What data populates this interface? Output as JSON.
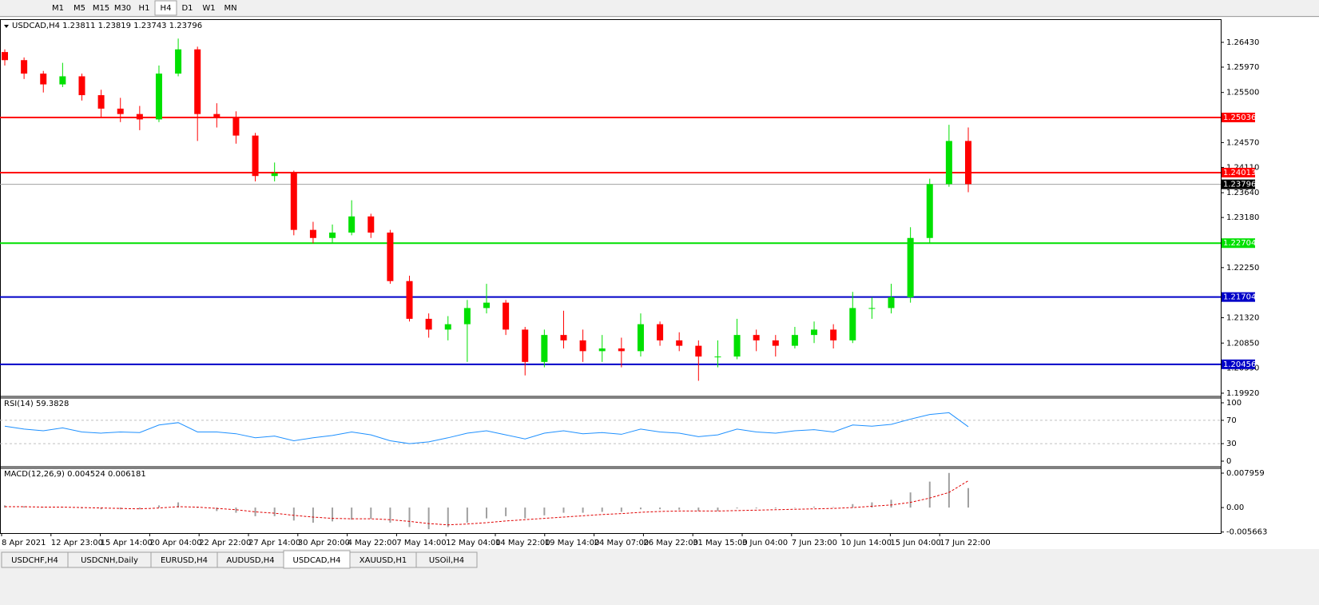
{
  "toolbar": {
    "timeframes": [
      "M1",
      "M5",
      "M15",
      "M30",
      "H1",
      "H4",
      "D1",
      "W1",
      "MN"
    ],
    "active": 5
  },
  "chart": {
    "header": "USDCAD,H4  1.23811 1.23819 1.23743 1.23796",
    "ylim": [
      1.19875,
      1.26845
    ],
    "yticks": [
      {
        "value": 1.2643,
        "label": "1.26430"
      },
      {
        "value": 1.2597,
        "label": "1.25970"
      },
      {
        "value": 1.255,
        "label": "1.25500"
      },
      {
        "value": 1.2457,
        "label": "1.24570"
      },
      {
        "value": 1.2411,
        "label": "1.24110"
      },
      {
        "value": 1.2364,
        "label": "1.23640"
      },
      {
        "value": 1.2318,
        "label": "1.23180"
      },
      {
        "value": 1.2225,
        "label": "1.22250"
      },
      {
        "value": 1.2132,
        "label": "1.21320"
      },
      {
        "value": 1.2085,
        "label": "1.20850"
      },
      {
        "value": 1.2039,
        "label": "1.20390"
      },
      {
        "value": 1.1992,
        "label": "1.19920"
      }
    ],
    "levels": [
      {
        "value": 1.25036,
        "color": "#ff0000"
      },
      {
        "value": 1.24013,
        "color": "#ff0000"
      },
      {
        "value": 1.22704,
        "color": "#00e000"
      },
      {
        "value": 1.21704,
        "color": "#0000c8"
      },
      {
        "value": 1.20456,
        "color": "#0000c8"
      }
    ],
    "current": 1.23796,
    "up_color": "#00e000",
    "down_color": "#ff0000",
    "candles": [
      [
        1.2625,
        1.263,
        1.26,
        1.261
      ],
      [
        1.261,
        1.2615,
        1.2575,
        1.2585
      ],
      [
        1.2585,
        1.259,
        1.255,
        1.2565
      ],
      [
        1.2565,
        1.2605,
        1.256,
        1.258
      ],
      [
        1.258,
        1.2585,
        1.2535,
        1.2545
      ],
      [
        1.2545,
        1.2555,
        1.2505,
        1.252
      ],
      [
        1.252,
        1.254,
        1.2495,
        1.251
      ],
      [
        1.251,
        1.2525,
        1.248,
        1.25
      ],
      [
        1.25,
        1.26,
        1.2495,
        1.2585
      ],
      [
        1.2585,
        1.265,
        1.258,
        1.263
      ],
      [
        1.263,
        1.2635,
        1.246,
        1.251
      ],
      [
        1.251,
        1.253,
        1.2485,
        1.2505
      ],
      [
        1.2505,
        1.2515,
        1.2455,
        1.247
      ],
      [
        1.247,
        1.2475,
        1.2385,
        1.2395
      ],
      [
        1.2395,
        1.242,
        1.2385,
        1.24
      ],
      [
        1.24,
        1.2405,
        1.2285,
        1.2295
      ],
      [
        1.2295,
        1.231,
        1.227,
        1.228
      ],
      [
        1.228,
        1.2305,
        1.227,
        1.229
      ],
      [
        1.229,
        1.235,
        1.2285,
        1.232
      ],
      [
        1.232,
        1.2325,
        1.228,
        1.229
      ],
      [
        1.229,
        1.2295,
        1.2195,
        1.22
      ],
      [
        1.22,
        1.221,
        1.2125,
        1.213
      ],
      [
        1.213,
        1.214,
        1.2095,
        1.211
      ],
      [
        1.211,
        1.2135,
        1.209,
        1.212
      ],
      [
        1.212,
        1.2165,
        1.205,
        1.215
      ],
      [
        1.215,
        1.2195,
        1.214,
        1.216
      ],
      [
        1.216,
        1.2165,
        1.21,
        1.211
      ],
      [
        1.211,
        1.2115,
        1.2025,
        1.205
      ],
      [
        1.205,
        1.211,
        1.204,
        1.21
      ],
      [
        1.21,
        1.2145,
        1.2075,
        1.209
      ],
      [
        1.209,
        1.211,
        1.205,
        1.207
      ],
      [
        1.207,
        1.21,
        1.205,
        1.2075
      ],
      [
        1.2075,
        1.2095,
        1.204,
        1.207
      ],
      [
        1.207,
        1.214,
        1.206,
        1.212
      ],
      [
        1.212,
        1.2125,
        1.208,
        1.209
      ],
      [
        1.209,
        1.2105,
        1.207,
        1.208
      ],
      [
        1.208,
        1.209,
        1.2015,
        1.206
      ],
      [
        1.206,
        1.209,
        1.204,
        1.206
      ],
      [
        1.206,
        1.213,
        1.2055,
        1.21
      ],
      [
        1.21,
        1.211,
        1.207,
        1.209
      ],
      [
        1.209,
        1.21,
        1.206,
        1.208
      ],
      [
        1.208,
        1.2115,
        1.2075,
        1.21
      ],
      [
        1.21,
        1.2125,
        1.2085,
        1.211
      ],
      [
        1.211,
        1.212,
        1.2075,
        1.209
      ],
      [
        1.209,
        1.218,
        1.2085,
        1.215
      ],
      [
        1.215,
        1.217,
        1.213,
        1.215
      ],
      [
        1.215,
        1.2195,
        1.214,
        1.217
      ],
      [
        1.217,
        1.23,
        1.216,
        1.228
      ],
      [
        1.228,
        1.239,
        1.227,
        1.238
      ],
      [
        1.238,
        1.249,
        1.2375,
        1.246
      ],
      [
        1.246,
        1.2485,
        1.2365,
        1.238
      ]
    ],
    "dates": [
      "8 Apr 2021",
      "12 Apr 23:00",
      "15 Apr 14:00",
      "20 Apr 04:00",
      "22 Apr 22:00",
      "27 Apr 14:00",
      "30 Apr 20:00",
      "4 May 22:00",
      "7 May 14:00",
      "12 May 04:00",
      "14 May 22:00",
      "19 May 14:00",
      "24 May 07:00",
      "26 May 22:00",
      "31 May 15:00",
      "3 Jun 04:00",
      "7 Jun 23:00",
      "10 Jun 14:00",
      "15 Jun 04:00",
      "17 Jun 22:00"
    ]
  },
  "rsi": {
    "label": "RSI(14) 59.3828",
    "ylim": [
      0,
      100
    ],
    "yticks": [
      100,
      70,
      30,
      0
    ],
    "levels": [
      70,
      30
    ],
    "color": "#1e90ff",
    "values": [
      60,
      55,
      52,
      57,
      50,
      48,
      50,
      49,
      62,
      66,
      50,
      50,
      47,
      40,
      43,
      35,
      40,
      44,
      50,
      45,
      35,
      30,
      33,
      40,
      48,
      52,
      45,
      38,
      48,
      52,
      47,
      49,
      46,
      55,
      50,
      48,
      42,
      45,
      55,
      50,
      48,
      52,
      54,
      50,
      62,
      60,
      63,
      72,
      80,
      83,
      59
    ]
  },
  "macd": {
    "label": "MACD(12,26,9) 0.004524 0.006181",
    "ylim": [
      -0.0059,
      0.0087
    ],
    "yticks": [
      {
        "value": 0.007959,
        "label": "0.007959"
      },
      {
        "value": 0,
        "label": "0.00"
      },
      {
        "value": -0.005663,
        "label": "-0.005663"
      }
    ],
    "values": [
      0.0005,
      0.0003,
      0.0001,
      0.0002,
      -0.0002,
      -0.0004,
      -0.0004,
      -0.0004,
      0.0005,
      0.0012,
      0,
      -0.0008,
      -0.0012,
      -0.002,
      -0.002,
      -0.003,
      -0.0035,
      -0.0032,
      -0.0028,
      -0.0026,
      -0.0035,
      -0.0045,
      -0.005,
      -0.0045,
      -0.0035,
      -0.0025,
      -0.002,
      -0.0025,
      -0.0018,
      -0.0012,
      -0.0012,
      -0.001,
      -0.001,
      -0.0004,
      -0.0004,
      -0.0005,
      -0.0008,
      -0.0008,
      -0.0002,
      -0.0002,
      -0.0002,
      0,
      0.0002,
      0.0001,
      0.0008,
      0.0012,
      0.0018,
      0.0035,
      0.006,
      0.008,
      0.0045
    ],
    "signal": [
      0.0002,
      0.0002,
      0.0001,
      0.0001,
      0,
      -0.0001,
      -0.0002,
      -0.0003,
      -0.0001,
      0.0002,
      0.0001,
      -0.0002,
      -0.0005,
      -0.001,
      -0.0013,
      -0.0018,
      -0.0022,
      -0.0025,
      -0.0026,
      -0.0026,
      -0.0028,
      -0.0032,
      -0.0037,
      -0.004,
      -0.0038,
      -0.0035,
      -0.0031,
      -0.0028,
      -0.0025,
      -0.0022,
      -0.0019,
      -0.0016,
      -0.0014,
      -0.0011,
      -0.0009,
      -0.0008,
      -0.0008,
      -0.0008,
      -0.0007,
      -0.0006,
      -0.0005,
      -0.0004,
      -0.0003,
      -0.0002,
      0,
      0.0003,
      0.0006,
      0.0012,
      0.0022,
      0.0035,
      0.0062
    ]
  },
  "tabs": {
    "items": [
      "USDCHF,H4",
      "USDCNH,Daily",
      "EURUSD,H4",
      "AUDUSD,H4",
      "USDCAD,H4",
      "XAUUSD,H1",
      "USOil,H4"
    ],
    "active": 4
  }
}
